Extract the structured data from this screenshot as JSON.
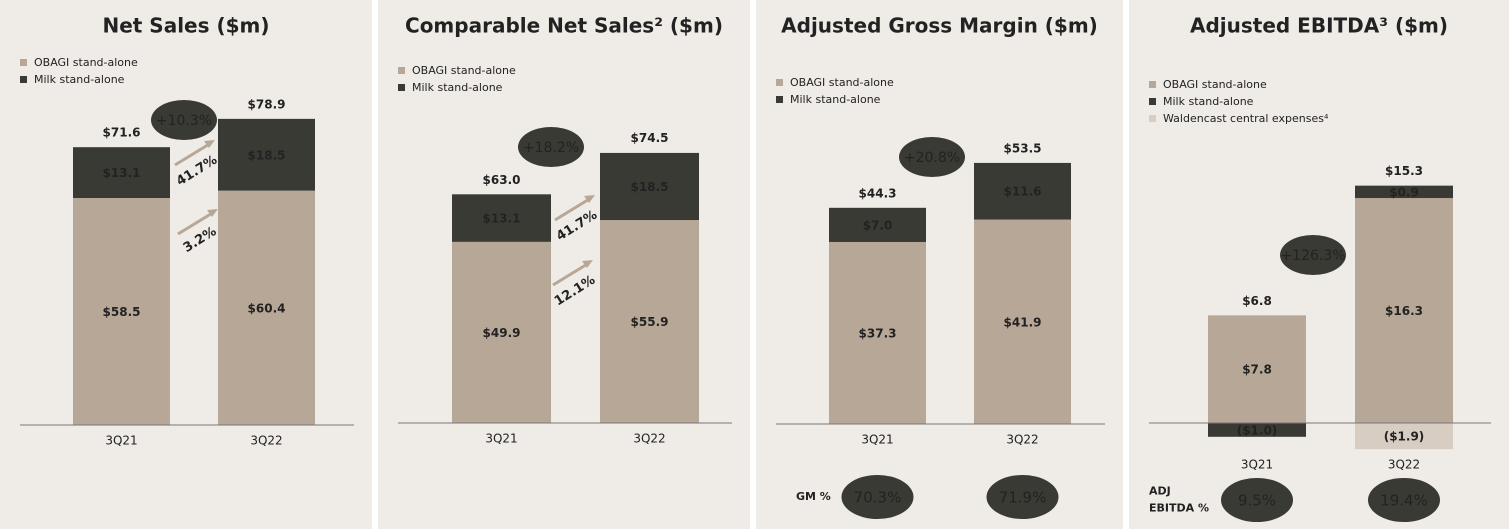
{
  "chart_data": [
    {
      "type": "bar",
      "stacked": true,
      "title": "Net Sales ($m)",
      "categories": [
        "3Q21",
        "3Q22"
      ],
      "series": [
        {
          "name": "OBAGI stand-alone",
          "color": "#b7a797",
          "values": [
            58.5,
            60.4
          ],
          "value_labels": [
            "$58.5",
            "$60.4"
          ]
        },
        {
          "name": "Milk stand-alone",
          "color": "#3a3a34",
          "values": [
            13.1,
            18.5
          ],
          "value_labels": [
            "$13.1",
            "$18.5"
          ]
        }
      ],
      "totals": [
        71.6,
        78.9
      ],
      "total_labels": [
        "$71.6",
        "$78.9"
      ],
      "growth": "+10.3%",
      "segment_growth": [
        "41.7%",
        "3.2%"
      ]
    },
    {
      "type": "bar",
      "stacked": true,
      "title": "Comparable Net Sales² ($m)",
      "categories": [
        "3Q21",
        "3Q22"
      ],
      "series": [
        {
          "name": "OBAGI stand-alone",
          "color": "#b7a797",
          "values": [
            49.9,
            55.9
          ],
          "value_labels": [
            "$49.9",
            "$55.9"
          ]
        },
        {
          "name": "Milk stand-alone",
          "color": "#3a3a34",
          "values": [
            13.1,
            18.5
          ],
          "value_labels": [
            "$13.1",
            "$18.5"
          ]
        }
      ],
      "totals": [
        63.0,
        74.5
      ],
      "total_labels": [
        "$63.0",
        "$74.5"
      ],
      "growth": "+18.2%",
      "segment_growth": [
        "41.7%",
        "12.1%"
      ]
    },
    {
      "type": "bar",
      "stacked": true,
      "title": "Adjusted Gross Margin ($m)",
      "categories": [
        "3Q21",
        "3Q22"
      ],
      "series": [
        {
          "name": "OBAGI stand-alone",
          "color": "#b7a797",
          "values": [
            37.3,
            41.9
          ],
          "value_labels": [
            "$37.3",
            "$41.9"
          ]
        },
        {
          "name": "Milk stand-alone",
          "color": "#3a3a34",
          "values": [
            7.0,
            11.6
          ],
          "value_labels": [
            "$7.0",
            "$11.6"
          ]
        }
      ],
      "totals": [
        44.3,
        53.5
      ],
      "total_labels": [
        "$44.3",
        "$53.5"
      ],
      "growth": "+20.8%",
      "footer": {
        "label": [
          "GM %"
        ],
        "values": [
          "70.3%",
          "71.9%"
        ]
      }
    },
    {
      "type": "bar",
      "stacked": true,
      "title": "Adjusted EBITDA³ ($m)",
      "categories": [
        "3Q21",
        "3Q22"
      ],
      "series": [
        {
          "name": "OBAGI stand-alone",
          "color": "#b7a797",
          "values": [
            7.8,
            16.3
          ],
          "value_labels": [
            "$7.8",
            "$16.3"
          ]
        },
        {
          "name": "Milk stand-alone",
          "color": "#3a3a34",
          "values": [
            -1.0,
            0.9
          ],
          "value_labels": [
            "($1.0)",
            "$0.9"
          ]
        },
        {
          "name": "Waldencast central expenses⁴",
          "color": "#d8cdc2",
          "values": [
            null,
            -1.9
          ],
          "value_labels": [
            null,
            "($1.9)"
          ]
        }
      ],
      "totals": [
        6.8,
        15.3
      ],
      "total_labels": [
        "$6.8",
        "$15.3"
      ],
      "growth": "+126.3%",
      "footer": {
        "label": [
          "ADJ",
          "EBITDA %"
        ],
        "values": [
          "9.5%",
          "19.4%"
        ]
      }
    }
  ]
}
